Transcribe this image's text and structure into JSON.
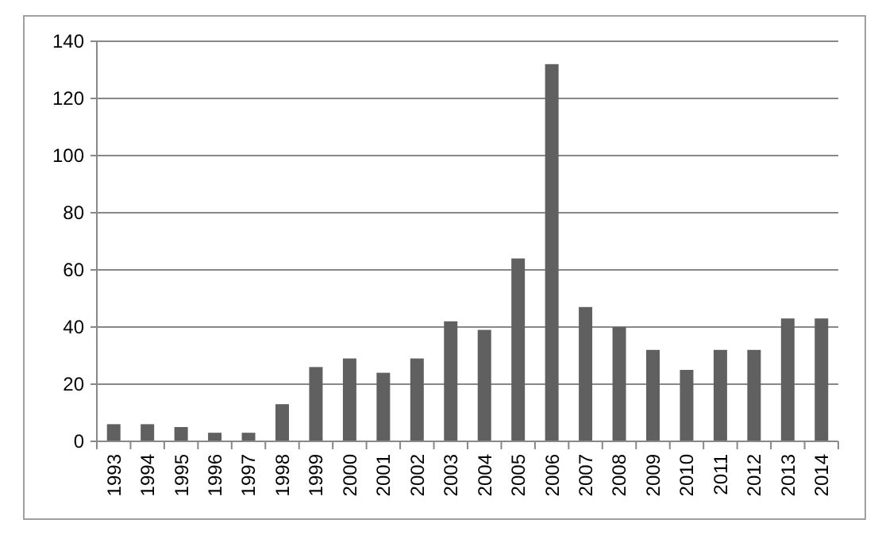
{
  "chart_data": {
    "type": "bar",
    "categories": [
      "1993",
      "1994",
      "1995",
      "1996",
      "1997",
      "1998",
      "1999",
      "2000",
      "2001",
      "2002",
      "2003",
      "2004",
      "2005",
      "2006",
      "2007",
      "2008",
      "2009",
      "2010",
      "2011",
      "2012",
      "2013",
      "2014"
    ],
    "values": [
      6,
      6,
      5,
      3,
      3,
      13,
      26,
      29,
      24,
      29,
      42,
      39,
      64,
      132,
      47,
      40,
      32,
      25,
      32,
      32,
      43,
      43
    ],
    "color": "#606060",
    "ylim": [
      0,
      140
    ],
    "yticks": [
      0,
      20,
      40,
      60,
      80,
      100,
      120,
      140
    ],
    "grid": "y"
  }
}
